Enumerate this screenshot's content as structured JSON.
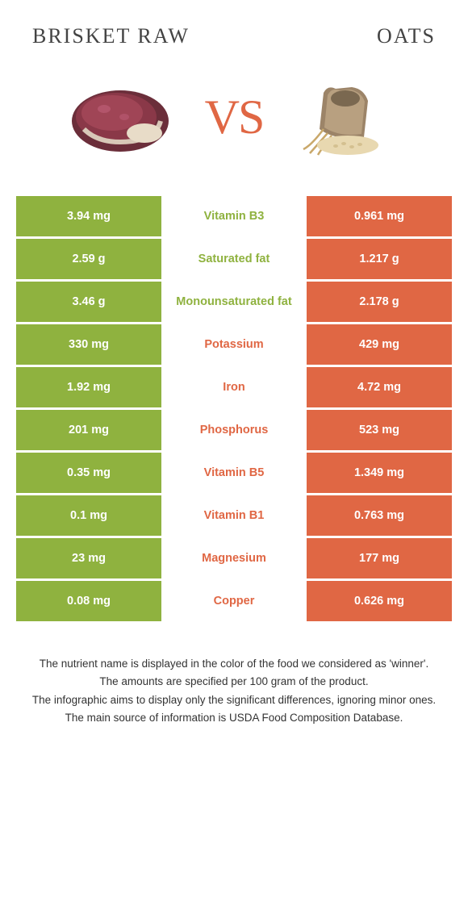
{
  "colors": {
    "green": "#8fb23f",
    "orange": "#e06744",
    "text_dark": "#333333",
    "background": "#ffffff"
  },
  "titles": {
    "left": "BRISKET RAW",
    "right": "OATS"
  },
  "vs_label": "VS",
  "nutrients": [
    {
      "left": "3.94 mg",
      "name": "Vitamin B3",
      "right": "0.961 mg",
      "winner": "left"
    },
    {
      "left": "2.59 g",
      "name": "Saturated fat",
      "right": "1.217 g",
      "winner": "left"
    },
    {
      "left": "3.46 g",
      "name": "Monounsaturated fat",
      "right": "2.178 g",
      "winner": "left"
    },
    {
      "left": "330 mg",
      "name": "Potassium",
      "right": "429 mg",
      "winner": "right"
    },
    {
      "left": "1.92 mg",
      "name": "Iron",
      "right": "4.72 mg",
      "winner": "right"
    },
    {
      "left": "201 mg",
      "name": "Phosphorus",
      "right": "523 mg",
      "winner": "right"
    },
    {
      "left": "0.35 mg",
      "name": "Vitamin B5",
      "right": "1.349 mg",
      "winner": "right"
    },
    {
      "left": "0.1 mg",
      "name": "Vitamin B1",
      "right": "0.763 mg",
      "winner": "right"
    },
    {
      "left": "23 mg",
      "name": "Magnesium",
      "right": "177 mg",
      "winner": "right"
    },
    {
      "left": "0.08 mg",
      "name": "Copper",
      "right": "0.626 mg",
      "winner": "right"
    }
  ],
  "footer": {
    "line1": "The nutrient name is displayed in the color of the food we considered as 'winner'.",
    "line2": "The amounts are specified per 100 gram of the product.",
    "line3": "The infographic aims to display only the significant differences, ignoring minor ones.",
    "line4": "The main source of information is USDA Food Composition Database."
  }
}
